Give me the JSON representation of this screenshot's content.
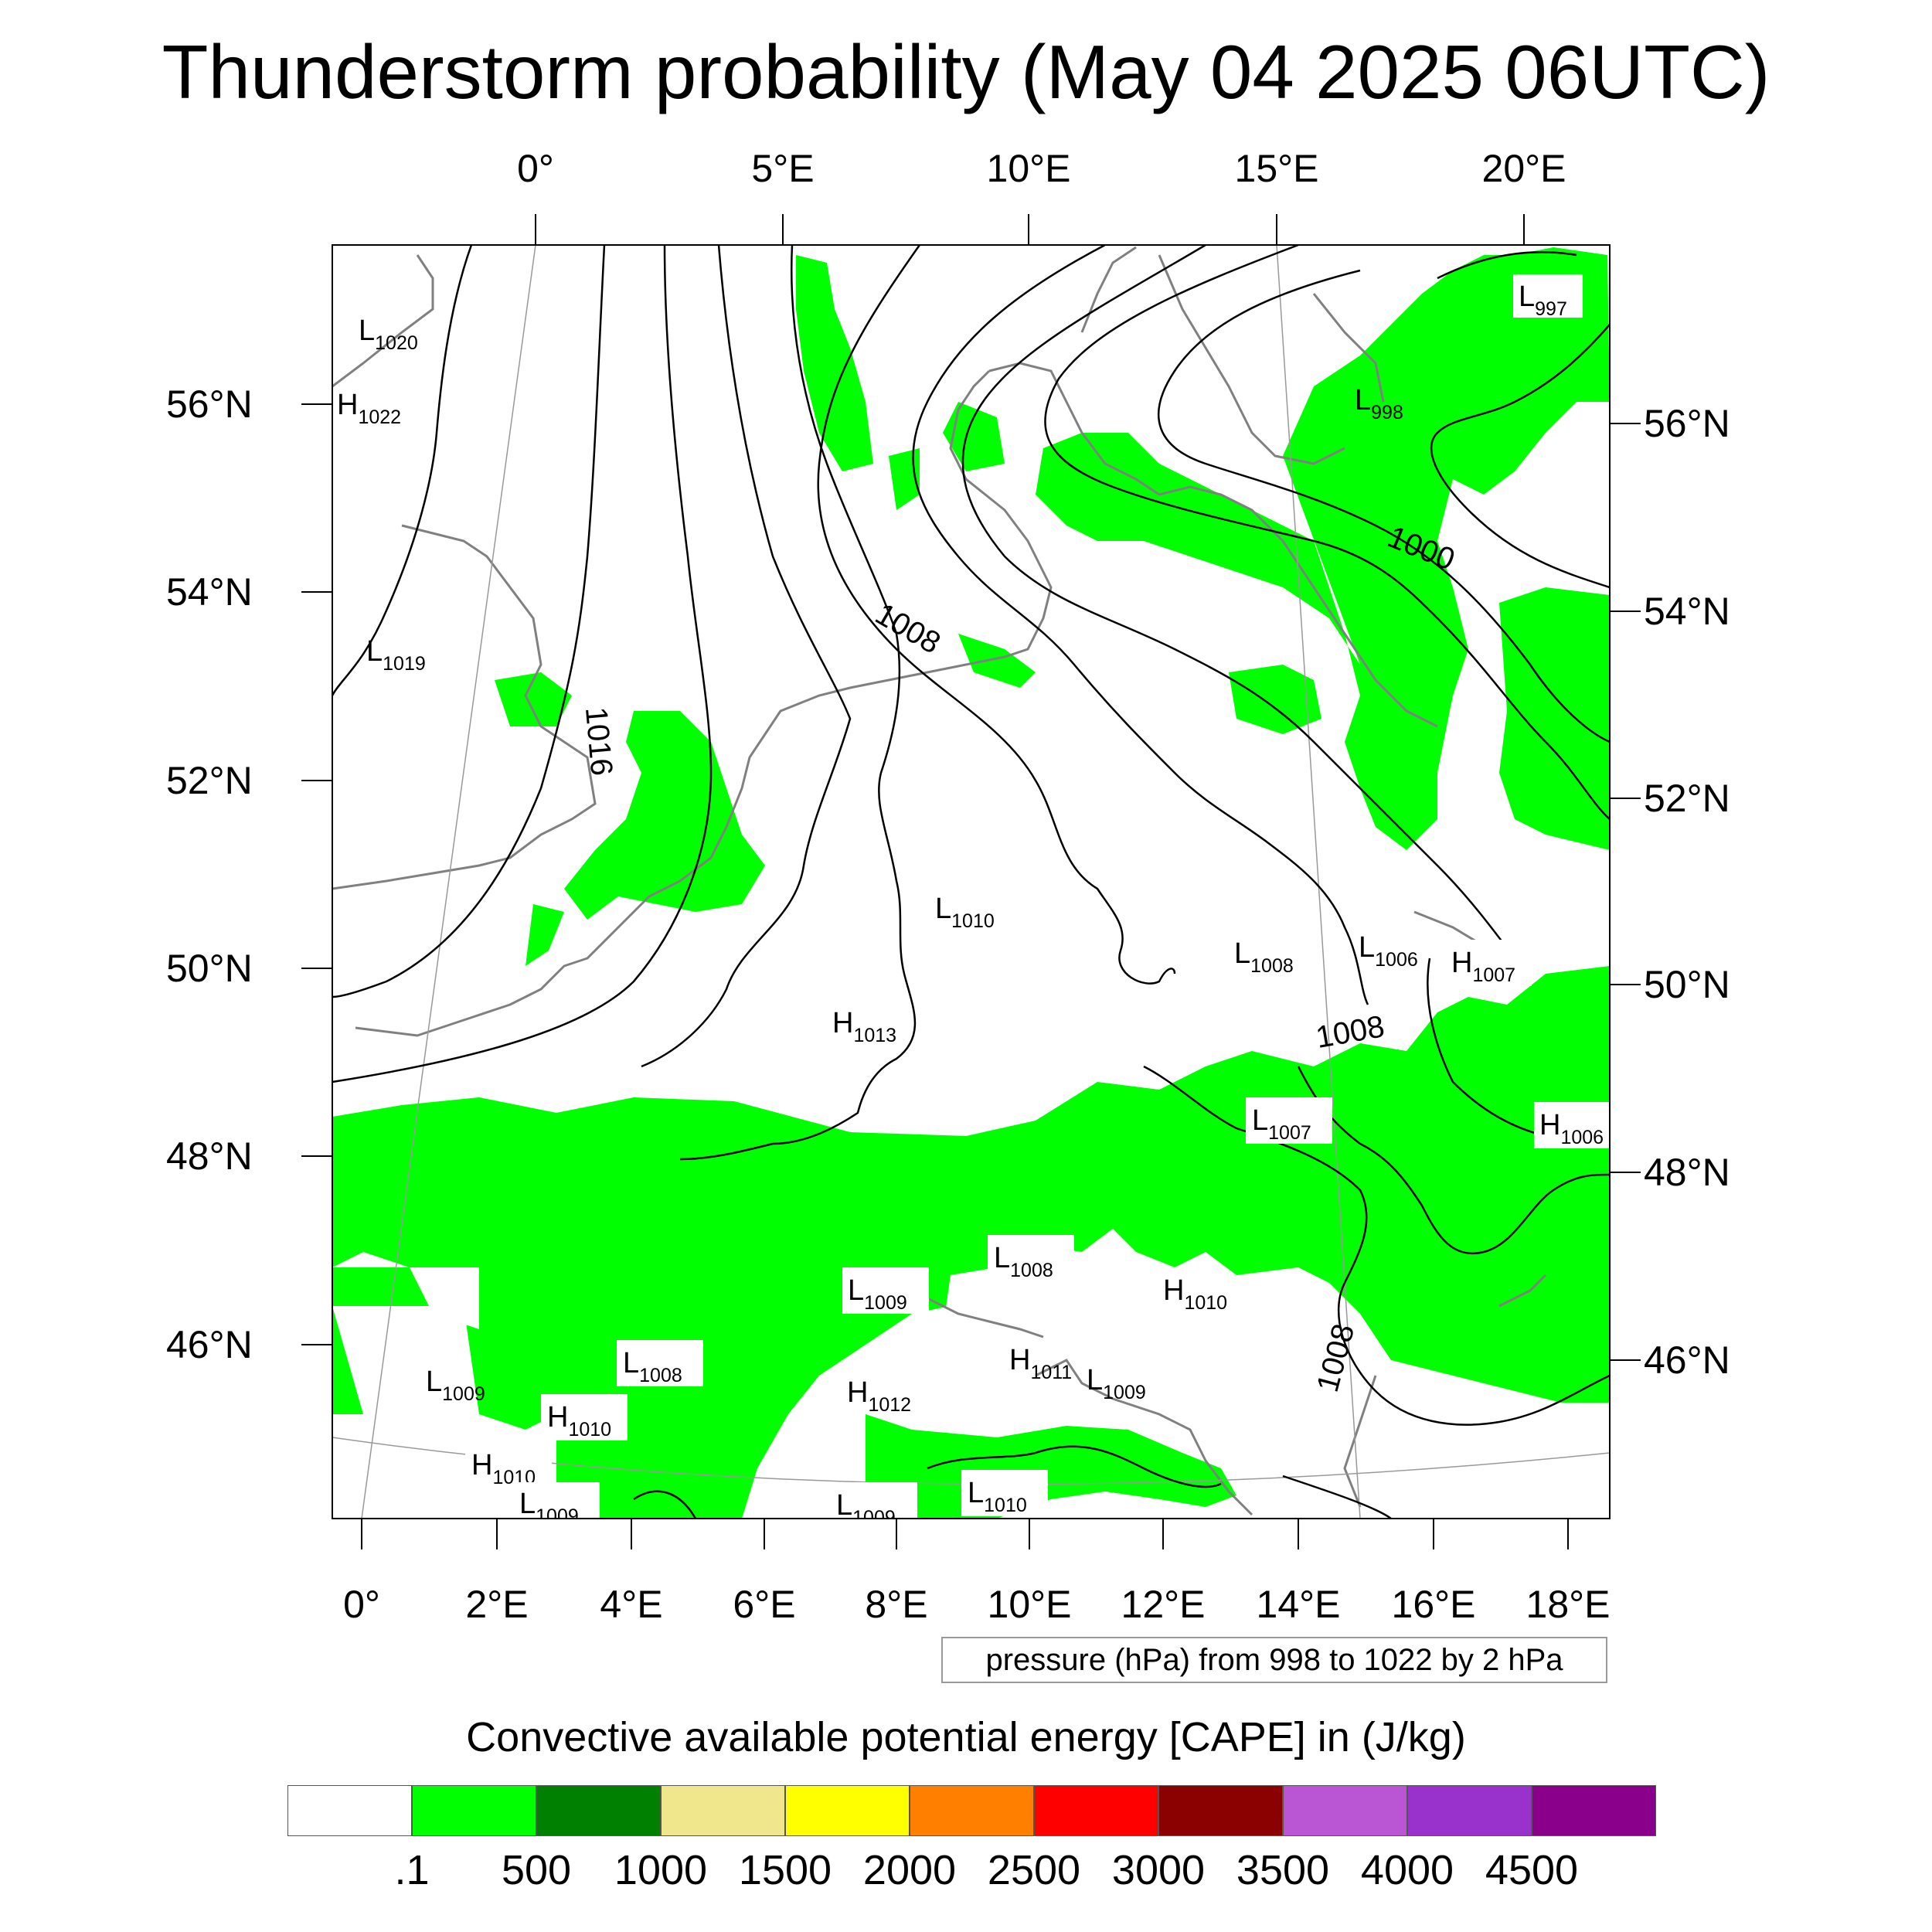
{
  "title": "Thunderstorm probability (May 04 2025 06UTC)",
  "map": {
    "top_lon_labels": [
      "0°",
      "5°E",
      "10°E",
      "15°E",
      "20°E"
    ],
    "bottom_lon_labels": [
      "0°",
      "2°E",
      "4°E",
      "6°E",
      "8°E",
      "10°E",
      "12°E",
      "14°E",
      "16°E",
      "18°E"
    ],
    "left_lat_labels": [
      "56°N",
      "54°N",
      "52°N",
      "50°N",
      "48°N",
      "46°N"
    ],
    "right_lat_labels": [
      "56°N",
      "54°N",
      "52°N",
      "50°N",
      "48°N",
      "46°N"
    ],
    "isobar_labels": [
      "1016",
      "1008",
      "1000",
      "1008",
      "1008"
    ],
    "pressure_centers": [
      {
        "type": "L",
        "value": "1020"
      },
      {
        "type": "H",
        "value": "1022"
      },
      {
        "type": "L",
        "value": "1019"
      },
      {
        "type": "L",
        "value": "997"
      },
      {
        "type": "L",
        "value": "998"
      },
      {
        "type": "L",
        "value": "1010"
      },
      {
        "type": "H",
        "value": "1013"
      },
      {
        "type": "L",
        "value": "1008"
      },
      {
        "type": "L",
        "value": "1006"
      },
      {
        "type": "H",
        "value": "1007"
      },
      {
        "type": "L",
        "value": "1007"
      },
      {
        "type": "H",
        "value": "1006"
      },
      {
        "type": "L",
        "value": "1008"
      },
      {
        "type": "L",
        "value": "1009"
      },
      {
        "type": "H",
        "value": "1010"
      },
      {
        "type": "L",
        "value": "1008"
      },
      {
        "type": "L",
        "value": "1009"
      },
      {
        "type": "H",
        "value": "1010"
      },
      {
        "type": "H",
        "value": "1010"
      },
      {
        "type": "L",
        "value": "1009"
      },
      {
        "type": "H",
        "value": "1011"
      },
      {
        "type": "L",
        "value": "1009"
      },
      {
        "type": "H",
        "value": "1012"
      },
      {
        "type": "L",
        "value": "1009"
      },
      {
        "type": "L",
        "value": "1010"
      }
    ],
    "colors": {
      "cape_fill": "#00ff00",
      "isobar": "#000000",
      "coastline": "#808080"
    }
  },
  "pressure_note": "pressure (hPa) from 998 to 1022 by 2 hPa",
  "colorbar": {
    "title": "Convective available potential energy [CAPE] in (J/kg)",
    "colors": [
      "#ffffff",
      "#00ff00",
      "#008000",
      "#f0e68c",
      "#ffff00",
      "#ff8000",
      "#ff0000",
      "#8b0000",
      "#ba55d3",
      "#9932cc",
      "#8b008b"
    ],
    "labels": [
      ".1",
      "500",
      "1000",
      "1500",
      "2000",
      "2500",
      "3000",
      "3500",
      "4000",
      "4500"
    ]
  }
}
